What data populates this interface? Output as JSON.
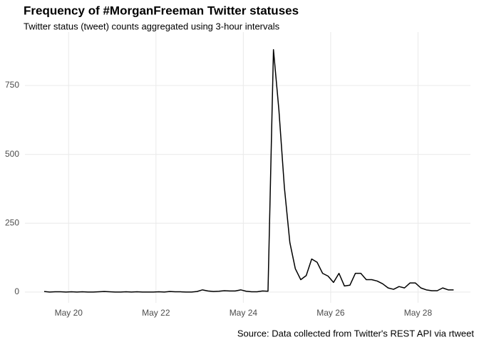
{
  "chart_data": {
    "type": "line",
    "title": "Frequency of #MorganFreeman Twitter statuses",
    "subtitle": "Twitter status (tweet) counts aggregated using 3-hour intervals",
    "caption": "Source: Data collected from Twitter's REST API via rtweet",
    "x": [
      19.44,
      19.565,
      19.69,
      19.815,
      19.94,
      20.065,
      20.19,
      20.315,
      20.44,
      20.565,
      20.69,
      20.815,
      20.94,
      21.065,
      21.19,
      21.315,
      21.44,
      21.565,
      21.69,
      21.815,
      21.94,
      22.065,
      22.19,
      22.315,
      22.44,
      22.565,
      22.69,
      22.815,
      22.94,
      23.065,
      23.19,
      23.315,
      23.44,
      23.565,
      23.69,
      23.815,
      23.94,
      24.065,
      24.19,
      24.315,
      24.44,
      24.565,
      24.69,
      24.815,
      24.94,
      25.065,
      25.19,
      25.315,
      25.44,
      25.565,
      25.69,
      25.815,
      25.94,
      26.065,
      26.19,
      26.315,
      26.44,
      26.565,
      26.69,
      26.815,
      26.94,
      27.065,
      27.19,
      27.315,
      27.44,
      27.565,
      27.69,
      27.815,
      27.94,
      28.065,
      28.19,
      28.315,
      28.44,
      28.565,
      28.69,
      28.815
    ],
    "series": [
      {
        "color": "#000000",
        "values": [
          2,
          0,
          1,
          1,
          0,
          1,
          0,
          1,
          0,
          0,
          1,
          2,
          1,
          0,
          0,
          1,
          0,
          1,
          0,
          0,
          0,
          1,
          0,
          2,
          1,
          1,
          0,
          0,
          2,
          8,
          4,
          2,
          3,
          5,
          4,
          4,
          8,
          3,
          1,
          1,
          4,
          3,
          880,
          660,
          380,
          180,
          85,
          45,
          60,
          120,
          108,
          68,
          58,
          35,
          68,
          22,
          25,
          68,
          68,
          45,
          45,
          40,
          30,
          15,
          10,
          20,
          15,
          33,
          33,
          15,
          8,
          5,
          5,
          15,
          8,
          8
        ]
      }
    ],
    "xlim": [
      19.0,
      29.2
    ],
    "xticks": [
      {
        "value": 20,
        "label": "May 20"
      },
      {
        "value": 22,
        "label": "May 22"
      },
      {
        "value": 24,
        "label": "May 24"
      },
      {
        "value": 26,
        "label": "May 26"
      },
      {
        "value": 28,
        "label": "May 28"
      }
    ],
    "ylim": [
      -39,
      944
    ],
    "yticks": [
      0,
      250,
      500,
      750
    ],
    "grid": true
  }
}
